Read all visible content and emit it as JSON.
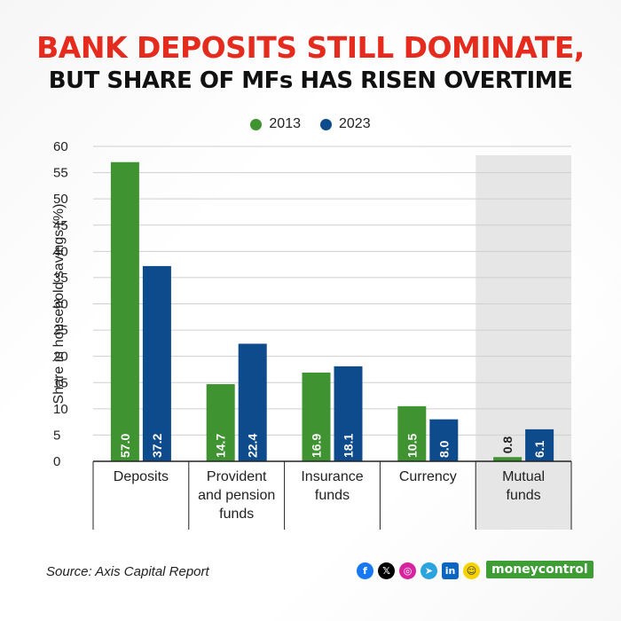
{
  "header": {
    "title_line1": "BANK DEPOSITS STILL DOMINATE,",
    "title_line2": "BUT SHARE OF MFs HAS RISEN OVERTIME"
  },
  "colors": {
    "title_red": "#e52a1e",
    "series_2013": "#3f9330",
    "series_2023": "#0d4b8c",
    "highlight_bg": "#e6e6e6",
    "brand_green": "#3f9d36"
  },
  "footer": {
    "source": "Source: Axis Capital Report",
    "brand": "moneycontrol",
    "social_icons": [
      "facebook-icon",
      "x-icon",
      "instagram-icon",
      "telegram-icon",
      "linkedin-icon",
      "snapchat-icon"
    ]
  },
  "chart_data": {
    "type": "bar",
    "title": "BANK DEPOSITS STILL DOMINATE, BUT SHARE OF MFs HAS RISEN OVERTIME",
    "ylabel": "Share in household savings (%)",
    "xlabel": "",
    "ylim": [
      0,
      60
    ],
    "yticks": [
      0,
      5,
      10,
      15,
      20,
      25,
      30,
      35,
      40,
      45,
      50,
      55,
      60
    ],
    "categories": [
      "Deposits",
      "Provident and pension funds",
      "Insurance funds",
      "Currency",
      "Mutual funds"
    ],
    "category_label_lines": [
      [
        "Deposits"
      ],
      [
        "Provident",
        "and pension",
        "funds"
      ],
      [
        "Insurance",
        "funds"
      ],
      [
        "Currency"
      ],
      [
        "Mutual",
        "funds"
      ]
    ],
    "highlighted_category": "Mutual funds",
    "grid": true,
    "legend_position": "top-center",
    "series": [
      {
        "name": "2013",
        "values": [
          57.0,
          14.7,
          16.9,
          10.5,
          0.8
        ],
        "labels": [
          "57.0",
          "14.7",
          "16.9",
          "10.5",
          "0.8"
        ]
      },
      {
        "name": "2023",
        "values": [
          37.2,
          22.4,
          18.1,
          8.0,
          6.1
        ],
        "labels": [
          "37.2",
          "22.4",
          "18.1",
          "8.0",
          "6.1"
        ]
      }
    ]
  }
}
